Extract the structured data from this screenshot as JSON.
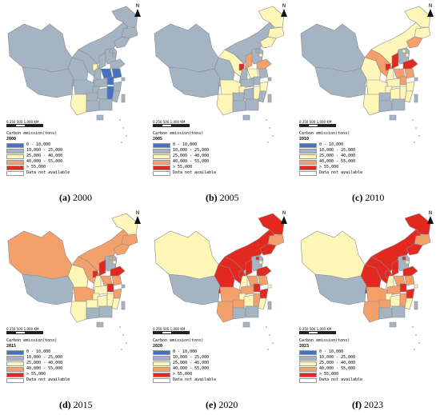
{
  "colors": {
    "c0": "#4472c4",
    "c1": "#a5b4c2",
    "c2": "#fff6b8",
    "c3": "#f4a06a",
    "c4": "#e3281f",
    "na": "#ffffff",
    "border": "#8a8a8a"
  },
  "legend": {
    "title": "Carbon emission(tons)",
    "classes": [
      "0 - 10,000",
      "10,000 - 25,000",
      "25,000 - 40,000",
      "40,000 - 55,000",
      "> 55,000",
      "Data not available"
    ]
  },
  "scale_label": "0  250  500       1,000 KM",
  "north_label": "N",
  "panels": [
    {
      "caption_letter": "(a)",
      "year": "2000",
      "classes": "11111111111112100011111101121"
    },
    {
      "caption_letter": "(b)",
      "year": "2005",
      "classes": "11121222112334121112122121121"
    },
    {
      "caption_letter": "(c)",
      "year": "2010",
      "classes": "11232223122444233312222222121"
    },
    {
      "caption_letter": "(d)",
      "year": "2015",
      "classes": "31233233132444233413232222221"
    },
    {
      "caption_letter": "(e)",
      "year": "2020",
      "classes": "21444434142444233424332232331"
    },
    {
      "caption_letter": "(f)",
      "year": "2023",
      "classes": "21444434142444233424332232331"
    }
  ]
}
